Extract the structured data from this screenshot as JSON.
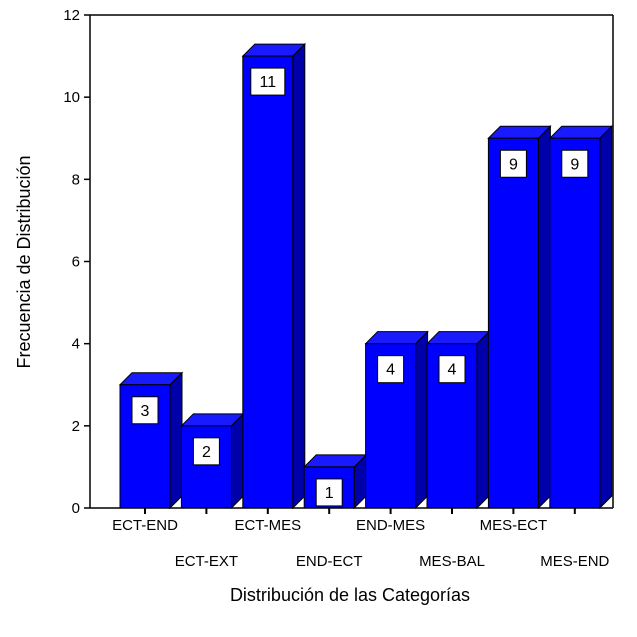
{
  "chart_data": {
    "type": "bar",
    "style": "3d",
    "title": "",
    "xlabel": "Distribución de las Categorías",
    "ylabel": "Frecuencia de Distribución",
    "categories": [
      "ECT-END",
      "ECT-EXT",
      "ECT-MES",
      "END-ECT",
      "END-MES",
      "MES-BAL",
      "MES-ECT",
      "MES-END"
    ],
    "values": [
      3,
      2,
      11,
      1,
      4,
      4,
      9,
      9
    ],
    "data_labels": [
      "3",
      "2",
      "11",
      "1",
      "4",
      "4",
      "9",
      "9"
    ],
    "ylim": [
      0,
      12
    ],
    "yticks": [
      "0",
      "2",
      "4",
      "6",
      "8",
      "10",
      "12"
    ],
    "grid": false,
    "legend": "none",
    "colors": {
      "bar_front": "#0000ff",
      "bar_top": "#1a1aff",
      "bar_side": "#0000aa",
      "outline": "#000000",
      "label_box": "#ffffff"
    }
  }
}
